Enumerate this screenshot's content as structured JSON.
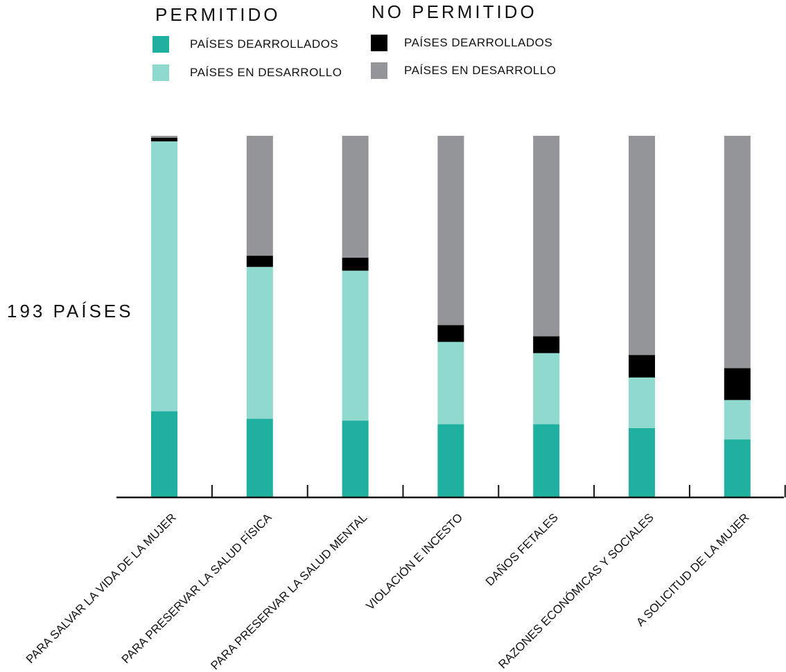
{
  "legend": {
    "allowed_title": "PERMITIDO",
    "not_allowed_title": "NO PERMITIDO",
    "items": [
      {
        "label": "PAÍSES DEARROLLADOS",
        "color": "#20b0a0"
      },
      {
        "label": "PAÍSES EN DESARROLLO",
        "color": "#90d9cf"
      },
      {
        "label": "PAÍSES DEARROLLADOS",
        "color": "#000000"
      },
      {
        "label": "PAÍSES EN DESARROLLO",
        "color": "#939598"
      }
    ]
  },
  "side_label": "193 PAÍSES",
  "chart_data": {
    "type": "bar",
    "stacked": true,
    "total": 193,
    "categories": [
      "PARA SALVAR LA VIDA DE LA MUJER",
      "PARA PRESERVAR LA SALUD FÍSICA",
      "PARA PRESERVAR LA SALUD MENTAL",
      "VIOLACIÓN E INCESTO",
      "DAÑOS FETALES",
      "RAZONES ECONÓMICAS Y SOCIALES",
      "A SOLICITUD DE LA MUJER"
    ],
    "series": [
      {
        "name": "PERMITIDO – PAÍSES DEARROLLADOS",
        "color": "#20b0a0",
        "values": [
          46,
          42,
          41,
          39,
          39,
          37,
          31
        ]
      },
      {
        "name": "PERMITIDO – PAÍSES EN DESARROLLO",
        "color": "#90d9cf",
        "values": [
          144,
          81,
          80,
          44,
          38,
          27,
          21
        ]
      },
      {
        "name": "NO PERMITIDO – PAÍSES DEARROLLADOS",
        "color": "#000000",
        "values": [
          2,
          6,
          7,
          9,
          9,
          12,
          17
        ]
      },
      {
        "name": "NO PERMITIDO – PAÍSES EN DESARROLLO",
        "color": "#939598",
        "values": [
          1,
          64,
          65,
          101,
          107,
          117,
          124
        ]
      }
    ]
  }
}
